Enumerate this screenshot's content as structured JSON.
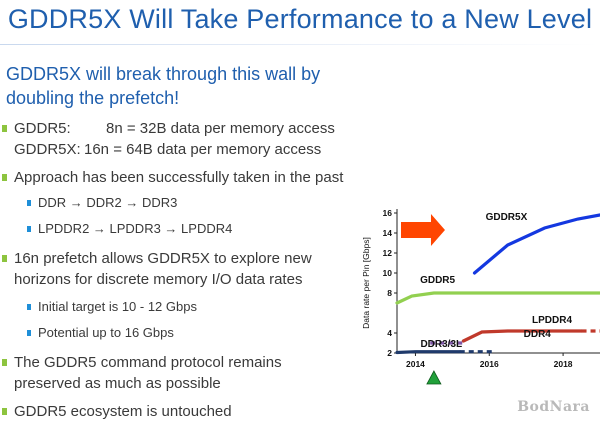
{
  "slide": {
    "title": "GDDR5X Will Take Performance to a New Level",
    "intro": "GDDR5X will break through this wall by doubling the prefetch!",
    "watermark": "BodNara"
  },
  "bullets": [
    {
      "label_a": "GDDR5:",
      "text_a": "8n = 32B data per memory access",
      "label_b": "GDDR5X:",
      "text_b": "16n = 64B data per memory access"
    },
    {
      "text": "Approach has been successfully taken in the past"
    },
    {
      "text": "DDR → DDR2 → DDR3"
    },
    {
      "text": "LPDDR2 → LPDDR3 → LPDDR4"
    },
    {
      "text": "16n prefetch allows GDDR5X to explore new horizons for discrete memory I/O data rates"
    },
    {
      "text": "Initial target is 10 - 12 Gbps"
    },
    {
      "text": "Potential up to 16 Gbps"
    },
    {
      "text": "The GDDR5 command protocol remains preserved as much as possible"
    },
    {
      "text": "GDDR5 ecosystem is untouched"
    }
  ],
  "chart_data": {
    "type": "line",
    "ylabel": "Data rate per Pin [Gbps]",
    "yticks": [
      2,
      4,
      8,
      10,
      12,
      14,
      16
    ],
    "ylim": [
      2,
      16
    ],
    "xticks": [
      2014,
      2016,
      2018
    ],
    "xlim": [
      2013.5,
      2019
    ],
    "marker_year": 2014.5,
    "arrow_color": "#ff4500",
    "series": [
      {
        "name": "GDDR5X",
        "color": "#1438e0",
        "points": [
          [
            2015.6,
            10
          ],
          [
            2016.5,
            12.8
          ],
          [
            2017.5,
            14.5
          ],
          [
            2018.4,
            15.4
          ],
          [
            2019,
            15.8
          ]
        ]
      },
      {
        "name": "GDDR5",
        "color": "#92d050",
        "points": [
          [
            2013.5,
            7
          ],
          [
            2013.9,
            7.7
          ],
          [
            2014.5,
            8
          ],
          [
            2019,
            8
          ]
        ]
      },
      {
        "name": "LPDDR4",
        "color": "#c0392b",
        "points": [
          [
            2015.3,
            3.2
          ],
          [
            2015.8,
            4.1
          ],
          [
            2016.5,
            4.2
          ],
          [
            2018.5,
            4.2
          ]
        ],
        "dash_from": 2018.5
      },
      {
        "name": "DDR4",
        "color": "#7e57a6",
        "points": [
          [
            2014.4,
            3.0
          ],
          [
            2019,
            3.0
          ]
        ],
        "dash_from": 2018.2
      },
      {
        "name": "DDR3/3L",
        "color": "#1f3a6b",
        "points": [
          [
            2013.5,
            2.05
          ],
          [
            2014.0,
            2.13
          ],
          [
            2015.2,
            2.13
          ]
        ],
        "dash_from": 2015.2
      }
    ]
  }
}
